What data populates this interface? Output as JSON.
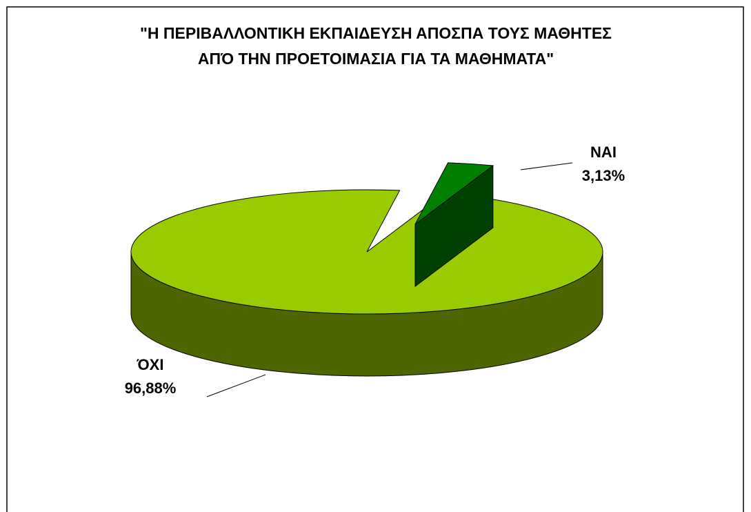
{
  "chart_data": {
    "type": "pie",
    "title": [
      "\"Η ΠΕΡΙΒΑΛΛΟΝΤΙΚΗ ΕΚΠΑΙΔΕΥΣΗ ΑΠΟΣΠΑ ΤΟΥΣ ΜΑΘΗΤΕΣ",
      "ΑΠΌ ΤΗΝ ΠΡΟΕΤΟΙΜΑΣΙΑ ΓΙΑ ΤΑ ΜΑΘΗΜΑΤΑ\""
    ],
    "categories": [
      "ΝΑΙ",
      "ΌΧΙ"
    ],
    "values": [
      3.13,
      96.88
    ],
    "value_labels": [
      "3,13%",
      "96,88%"
    ],
    "colors": [
      "#008000",
      "#99cc00"
    ]
  }
}
